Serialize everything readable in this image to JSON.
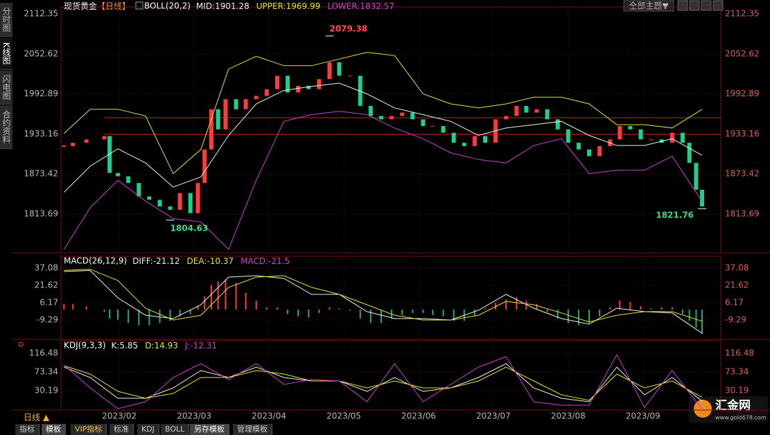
{
  "sidebar": {
    "tabs": [
      "分时图",
      "K线图",
      "闪电图",
      "合约资料"
    ]
  },
  "toolbar": {
    "theme_button": "全部主题▼"
  },
  "footer": {
    "period": "日线 ▲",
    "tabs": [
      "指标",
      "模板",
      "VIP指标",
      "标准",
      "KDJ",
      "BOLL",
      "另存模板",
      "管理模板"
    ]
  },
  "logo": {
    "name": "汇金网",
    "url": "www.gold678.com"
  },
  "chart_data": [
    {
      "type": "line",
      "title": "现货黄金",
      "period": "【日线】",
      "indicator": "BOLL(20,2)",
      "xlim": [
        1.22,
        10.04
      ],
      "ylim": [
        1755.82,
        2122.68
      ],
      "yticks": [
        1813.69,
        1873.42,
        1933.16,
        1992.89,
        2052.62,
        2112.35
      ],
      "grid": true,
      "up_color": "#ff3b3b",
      "down_color": "#1fd08a",
      "series": [
        {
          "style": "candle",
          "x": [
            1.26,
            1.38,
            1.56,
            1.8,
            1.87,
            1.98,
            2.12,
            2.26,
            2.4,
            2.54,
            2.68,
            2.81,
            2.95,
            3.05,
            3.14,
            3.23,
            3.32,
            3.42,
            3.56,
            3.69,
            3.83,
            3.97,
            4.11,
            4.25,
            4.39,
            4.53,
            4.67,
            4.81,
            4.94,
            5.08,
            5.22,
            5.36,
            5.5,
            5.64,
            5.78,
            5.92,
            6.06,
            6.19,
            6.33,
            6.47,
            6.61,
            6.75,
            6.89,
            7.03,
            7.17,
            7.31,
            7.44,
            7.58,
            7.72,
            7.86,
            8.0,
            8.14,
            8.28,
            8.42,
            8.56,
            8.69,
            8.83,
            8.97,
            9.11,
            9.25,
            9.39,
            9.53,
            9.62,
            9.71,
            9.79
          ],
          "values": [
            1915,
            1920,
            1925,
            1930,
            1875,
            1870,
            1860,
            1840,
            1835,
            1825,
            1820,
            1845,
            1815,
            1860,
            1910,
            1970,
            1940,
            1985,
            1970,
            1985,
            1990,
            2000,
            2020,
            1995,
            2005,
            2000,
            2015,
            2040,
            2020,
            2020,
            1975,
            1960,
            1955,
            1960,
            1965,
            1955,
            1945,
            1945,
            1935,
            1920,
            1915,
            1930,
            1920,
            1955,
            1960,
            1975,
            1965,
            1970,
            1955,
            1940,
            1920,
            1910,
            1900,
            1915,
            1925,
            1945,
            1940,
            1925,
            1925,
            1920,
            1935,
            1920,
            1890,
            1850,
            1825
          ]
        },
        {
          "name": "MID:",
          "color": "#f0f0f0",
          "style": "line",
          "x": [
            1.26,
            1.61,
            1.98,
            2.35,
            2.72,
            3.09,
            3.46,
            3.83,
            4.2,
            4.57,
            4.94,
            5.31,
            5.68,
            6.06,
            6.43,
            6.8,
            7.17,
            7.54,
            7.91,
            8.28,
            8.65,
            9.02,
            9.39,
            9.79
          ],
          "values": [
            1846,
            1885,
            1911,
            1890,
            1854,
            1869,
            1931,
            1978,
            1998,
            2004,
            2009,
            1993,
            1972,
            1962,
            1952,
            1931,
            1942,
            1947,
            1952,
            1931,
            1916,
            1916,
            1926,
            1901.28
          ]
        },
        {
          "name": "UPPER:",
          "color": "#e6e62e",
          "style": "line",
          "x": [
            1.26,
            1.61,
            1.98,
            2.35,
            2.72,
            3.09,
            3.46,
            3.83,
            4.2,
            4.57,
            4.94,
            5.31,
            5.68,
            6.06,
            6.43,
            6.8,
            7.17,
            7.54,
            7.91,
            8.28,
            8.65,
            9.02,
            9.39,
            9.79
          ],
          "values": [
            1934,
            1970,
            1970,
            1960,
            1874,
            1910,
            2030,
            2049,
            2035,
            2035,
            2045,
            2055,
            2050,
            1993,
            1978,
            1972,
            1978,
            1988,
            1988,
            1978,
            1947,
            1947,
            1942,
            1969.99
          ]
        },
        {
          "name": "LOWER:",
          "color": "#d23fd2",
          "style": "line",
          "x": [
            1.26,
            1.61,
            1.98,
            2.35,
            2.72,
            3.09,
            3.46,
            3.83,
            4.2,
            4.57,
            4.94,
            5.31,
            5.68,
            6.06,
            6.43,
            6.8,
            7.17,
            7.54,
            7.91,
            8.28,
            8.65,
            9.02,
            9.39,
            9.79
          ],
          "values": [
            1761,
            1823,
            1864,
            1833,
            1807,
            1802,
            1761,
            1864,
            1952,
            1962,
            1967,
            1962,
            1942,
            1926,
            1905,
            1895,
            1890,
            1916,
            1926,
            1874,
            1879,
            1879,
            1900,
            1832.57
          ]
        }
      ],
      "hlines": [
        {
          "value": 1957.3,
          "color": "#d81e1e"
        },
        {
          "value": 1932.5,
          "color": "#d81e1e"
        }
      ],
      "markers": [
        {
          "x": 4.81,
          "value": 2079.38,
          "color": "#ff4d4d",
          "side": "above"
        },
        {
          "x": 2.68,
          "value": 1804.63,
          "color": "#3fd88a",
          "side": "below"
        },
        {
          "x": 9.79,
          "value": 1821.76,
          "color": "#3fd88a",
          "side": "left"
        }
      ]
    },
    {
      "type": "combo",
      "title": "MACD(26,12,9)",
      "xlim": [
        1.22,
        10.04
      ],
      "ylim": [
        -26.6,
        47.59
      ],
      "yticks": [
        -9.29,
        6.17,
        21.62,
        37.08
      ],
      "grid": true,
      "up_color": "#ff3b3b",
      "down_color": "#1fb070",
      "series": [
        {
          "name": "DIFF:",
          "color": "#f0f0f0",
          "style": "line",
          "x": [
            1.26,
            1.61,
            1.98,
            2.35,
            2.72,
            3.09,
            3.46,
            3.83,
            4.2,
            4.57,
            4.94,
            5.31,
            5.68,
            6.06,
            6.43,
            6.8,
            7.17,
            7.54,
            7.91,
            8.28,
            8.65,
            9.02,
            9.39,
            9.79
          ],
          "values": [
            34,
            35,
            10.5,
            -5,
            -8,
            4.3,
            29,
            30.3,
            27.8,
            13.6,
            13.6,
            -1.8,
            -8,
            -8,
            -9.3,
            -0.6,
            13.6,
            1.2,
            -8,
            -13,
            1.2,
            -1.8,
            -3,
            -21.12
          ]
        },
        {
          "name": "DEA:",
          "color": "#e6e62e",
          "style": "line",
          "x": [
            1.26,
            1.61,
            1.98,
            2.35,
            2.72,
            3.09,
            3.46,
            3.83,
            4.2,
            4.57,
            4.94,
            5.31,
            5.68,
            6.06,
            6.43,
            6.8,
            7.17,
            7.54,
            7.91,
            8.28,
            8.65,
            9.02,
            9.39,
            9.79
          ],
          "values": [
            35,
            36,
            26,
            1.2,
            -9.3,
            -5,
            19.8,
            29,
            30.3,
            19.8,
            13.6,
            4.3,
            -5,
            -9.3,
            -9.3,
            -5,
            7.4,
            4.3,
            -3,
            -11,
            -5,
            -1.8,
            -1.8,
            -10.37
          ]
        },
        {
          "name": "MACD:",
          "color": "#d23fd2",
          "style": "bar",
          "x": [
            1.26,
            1.38,
            1.56,
            1.8,
            1.87,
            1.98,
            2.12,
            2.26,
            2.4,
            2.54,
            2.68,
            2.81,
            2.95,
            3.05,
            3.14,
            3.23,
            3.32,
            3.42,
            3.56,
            3.69,
            3.83,
            3.97,
            4.11,
            4.25,
            4.39,
            4.53,
            4.67,
            4.81,
            4.94,
            5.08,
            5.22,
            5.36,
            5.5,
            5.64,
            5.78,
            5.92,
            6.06,
            6.19,
            6.33,
            6.47,
            6.61,
            6.75,
            6.89,
            7.03,
            7.17,
            7.31,
            7.44,
            7.58,
            7.72,
            7.86,
            8.0,
            8.14,
            8.28,
            8.42,
            8.56,
            8.69,
            8.83,
            8.97,
            9.11,
            9.25,
            9.39,
            9.53,
            9.62,
            9.71,
            9.79
          ],
          "values": [
            5,
            5,
            3,
            -2,
            -8,
            -9,
            -12,
            -14,
            -14,
            -12,
            -10,
            -6,
            -4,
            3,
            12,
            22,
            25,
            27,
            24,
            15,
            8,
            2,
            2,
            -4,
            -6,
            -7,
            -3,
            2,
            1,
            -1,
            -8,
            -12,
            -12,
            -8,
            -5,
            -3,
            -3,
            -5,
            -6,
            -10,
            -10,
            -6,
            1,
            6,
            9,
            11,
            8,
            5,
            -2,
            -8,
            -12,
            -14,
            -12,
            -6,
            2,
            8,
            7,
            3,
            1,
            2,
            2,
            -4,
            -10,
            -16,
            -21.5
          ]
        }
      ]
    },
    {
      "type": "line",
      "title": "KDJ(9,3,3)",
      "xlim": [
        1.22,
        10.04
      ],
      "ylim": [
        -14.55,
        145.24
      ],
      "yticks": [
        30.19,
        73.34,
        116.48
      ],
      "grid": true,
      "xticks": [
        {
          "value": 2,
          "label": "2023/02"
        },
        {
          "value": 3,
          "label": "2023/03"
        },
        {
          "value": 4,
          "label": "2023/04"
        },
        {
          "value": 5,
          "label": "2023/05"
        },
        {
          "value": 6,
          "label": "2023/06"
        },
        {
          "value": 7,
          "label": "2023/07"
        },
        {
          "value": 8,
          "label": "2023/08"
        },
        {
          "value": 9,
          "label": "2023/09"
        }
      ],
      "series": [
        {
          "name": "K:",
          "color": "#f0f0f0",
          "style": "line",
          "x": [
            1.26,
            1.61,
            1.98,
            2.35,
            2.72,
            3.09,
            3.46,
            3.83,
            4.2,
            4.57,
            4.94,
            5.31,
            5.68,
            6.06,
            6.43,
            6.8,
            7.17,
            7.54,
            7.91,
            8.28,
            8.65,
            9.02,
            9.39,
            9.79
          ],
          "values": [
            84.5,
            60.5,
            12.6,
            12.6,
            36.6,
            76.5,
            60.5,
            84.5,
            60.5,
            52.5,
            52.5,
            28.6,
            60.5,
            28.6,
            36.6,
            60.5,
            92.5,
            36.6,
            12.6,
            4.6,
            84.5,
            20.6,
            60.5,
            5.85
          ]
        },
        {
          "name": "D:",
          "color": "#e6e62e",
          "style": "line",
          "x": [
            1.26,
            1.61,
            1.98,
            2.35,
            2.72,
            3.09,
            3.46,
            3.83,
            4.2,
            4.57,
            4.94,
            5.31,
            5.68,
            6.06,
            6.43,
            6.8,
            7.17,
            7.54,
            7.91,
            8.28,
            8.65,
            9.02,
            9.39,
            9.79
          ],
          "values": [
            87.7,
            68.5,
            28.6,
            12.6,
            23.8,
            60.5,
            60.5,
            76.5,
            68.5,
            52.5,
            52.5,
            36.6,
            52.5,
            36.6,
            36.6,
            52.5,
            84.5,
            52.5,
            20.6,
            7.8,
            68.5,
            36.6,
            52.5,
            14.93
          ]
        },
        {
          "name": "J:",
          "color": "#d23fd2",
          "style": "line",
          "x": [
            1.26,
            1.61,
            1.98,
            2.35,
            2.72,
            3.09,
            3.46,
            3.83,
            4.2,
            4.57,
            4.94,
            5.31,
            5.68,
            6.06,
            6.43,
            6.8,
            7.17,
            7.54,
            7.91,
            8.28,
            8.65,
            9.02,
            9.39,
            9.79
          ],
          "values": [
            89.3,
            36.6,
            -11.4,
            4.6,
            60.5,
            92.5,
            55.7,
            92.5,
            44.6,
            55.7,
            52.5,
            4.6,
            92.5,
            4.6,
            44.6,
            84.5,
            108.5,
            4.6,
            -3.4,
            -3.4,
            113.3,
            -8.4,
            76.5,
            -12.31
          ]
        }
      ]
    }
  ]
}
